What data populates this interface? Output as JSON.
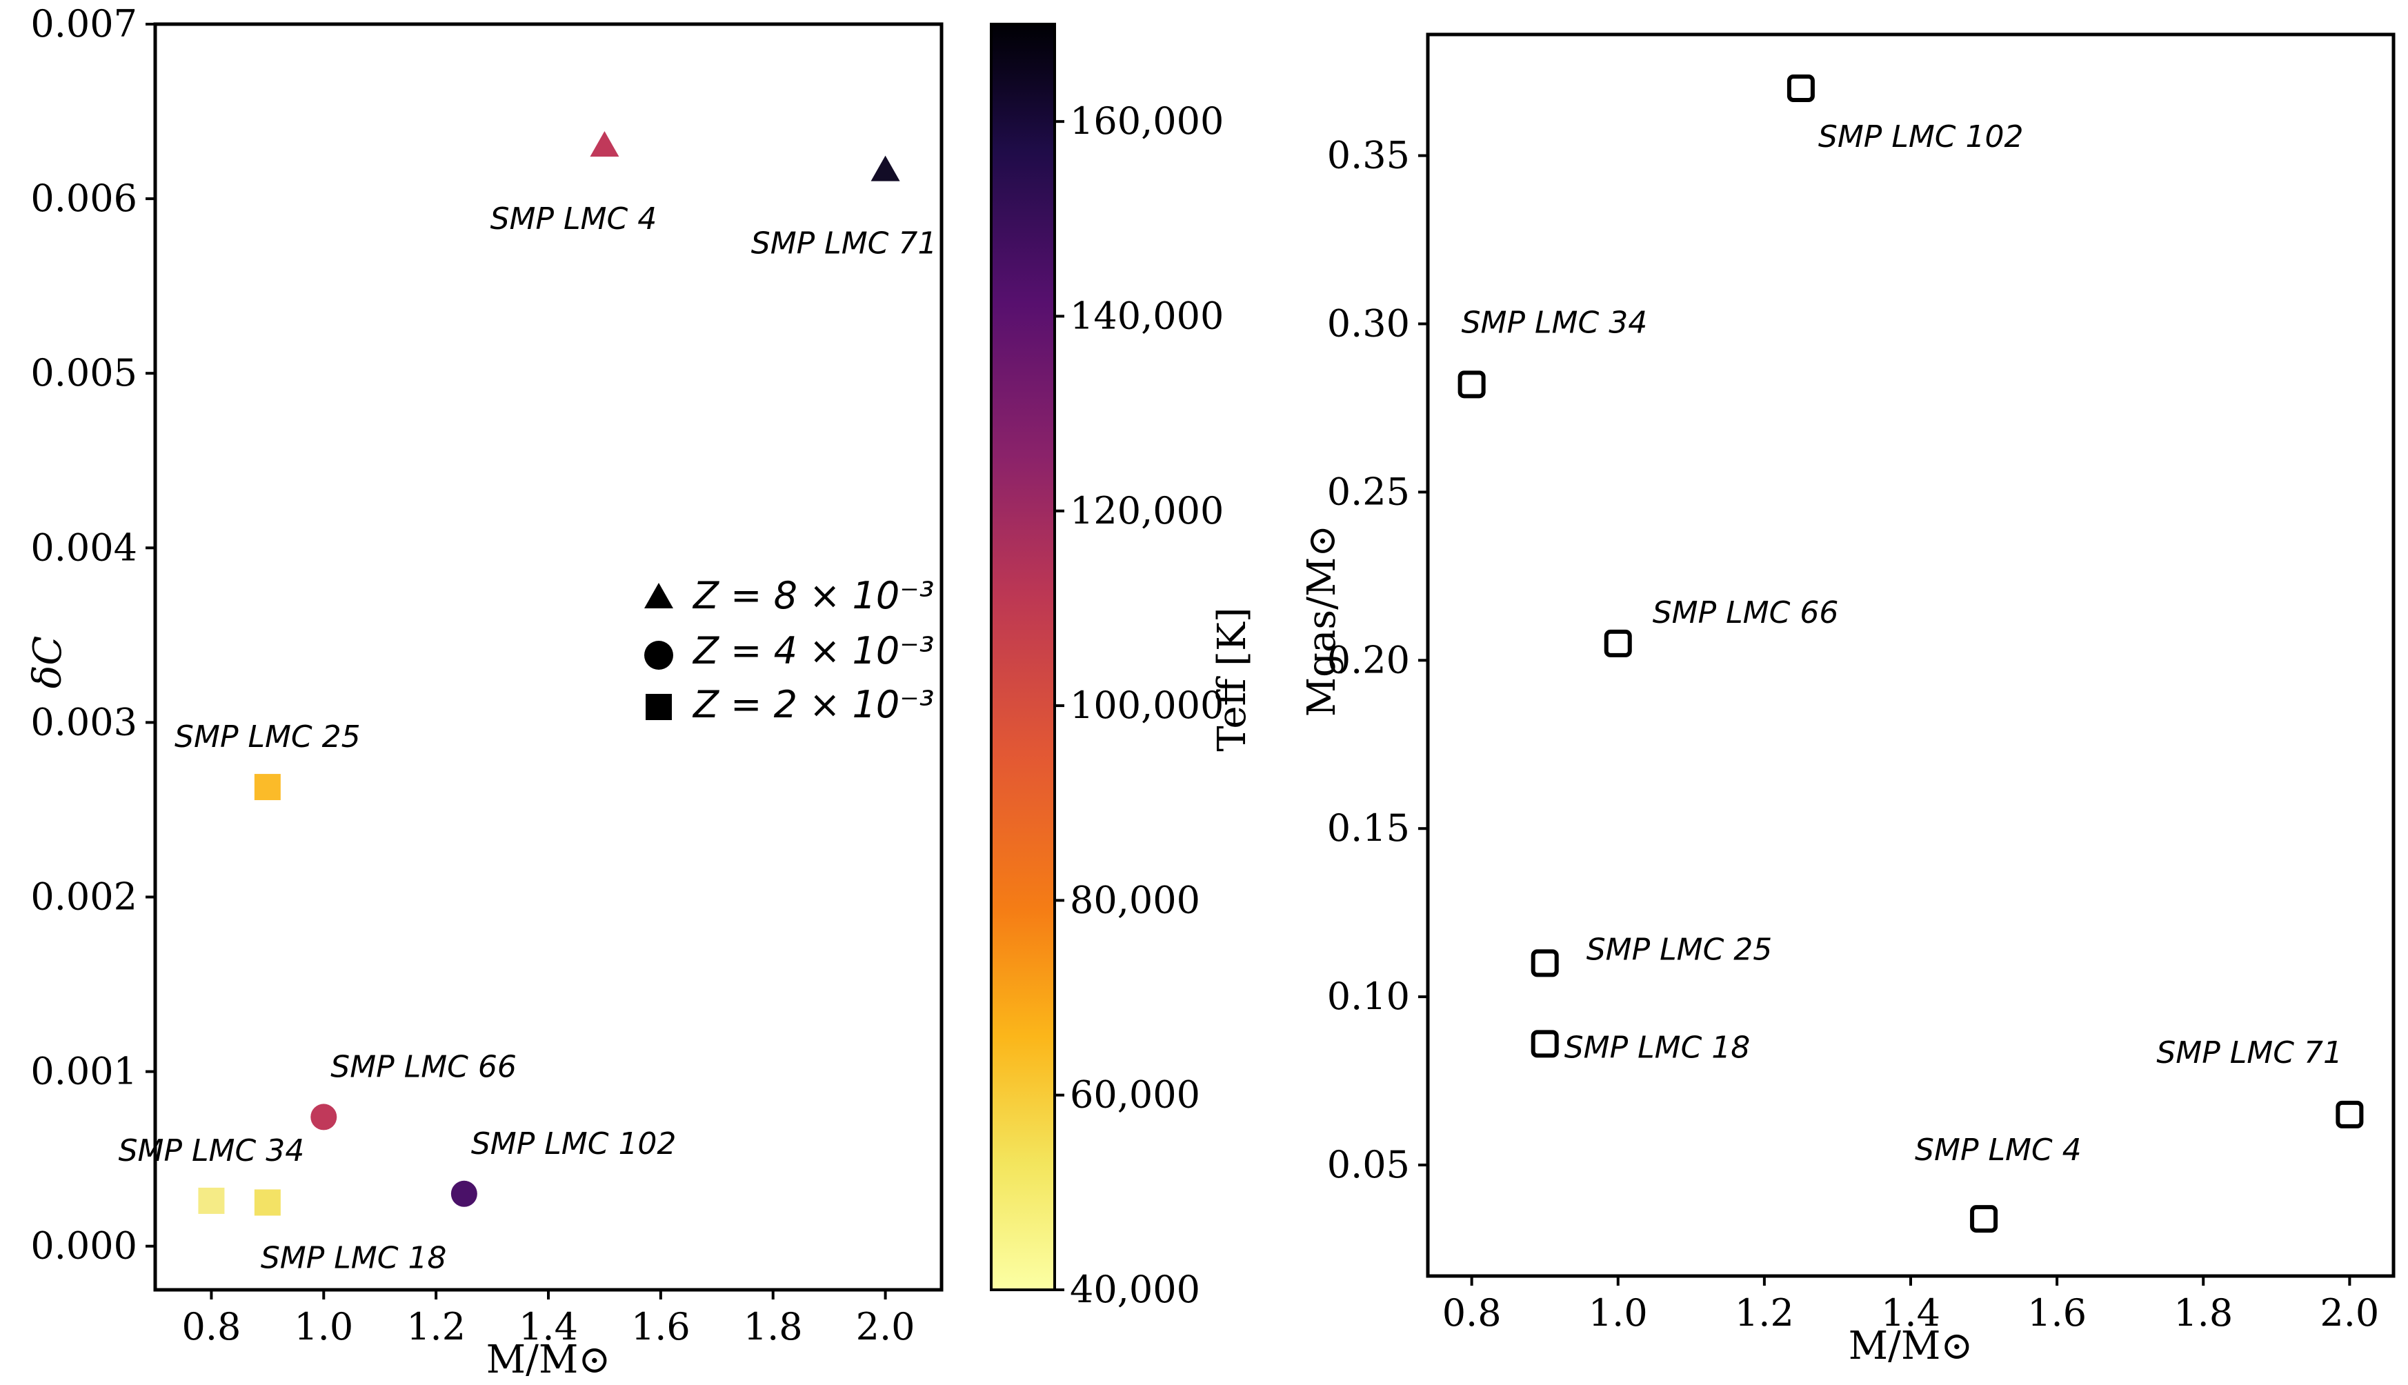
{
  "chart_data": [
    {
      "type": "scatter",
      "xlabel": "M/M⊙",
      "ylabel": "δC",
      "xlim": [
        0.7,
        2.1
      ],
      "ylim": [
        -0.00025,
        0.007
      ],
      "xticks": [
        0.8,
        1.0,
        1.2,
        1.4,
        1.6,
        1.8,
        2.0
      ],
      "xtick_labels": [
        "0.8",
        "1.0",
        "1.2",
        "1.4",
        "1.6",
        "1.8",
        "2.0"
      ],
      "yticks": [
        0.0,
        0.001,
        0.002,
        0.003,
        0.004,
        0.005,
        0.006,
        0.007
      ],
      "ytick_labels": [
        "0.000",
        "0.001",
        "0.002",
        "0.003",
        "0.004",
        "0.005",
        "0.006",
        "0.007"
      ],
      "colorbar": {
        "label": "Teff [K]",
        "cmap": "inferno_r",
        "range": [
          40000,
          170000
        ],
        "ticks": [
          40000,
          60000,
          80000,
          100000,
          120000,
          140000,
          160000
        ],
        "tick_labels": [
          "40,000",
          "60,000",
          "80,000",
          "100,000",
          "120,000",
          "140,000",
          "160,000"
        ]
      },
      "legend": {
        "placement": "center-right",
        "entries": [
          {
            "marker": "triangle",
            "label": "Z = 8 × 10⁻³"
          },
          {
            "marker": "circle",
            "label": "Z = 4 × 10⁻³"
          },
          {
            "marker": "square",
            "label": "Z = 2 × 10⁻³"
          }
        ]
      },
      "points": [
        {
          "name": "SMP LMC 4",
          "x": 1.5,
          "y": 0.0063,
          "marker": "triangle",
          "teff": 112000,
          "color": "#c0395a",
          "label_pos": "below-left"
        },
        {
          "name": "SMP LMC 71",
          "x": 2.0,
          "y": 0.00616,
          "marker": "triangle",
          "teff": 170000,
          "color": "#120c26",
          "label_pos": "below-left"
        },
        {
          "name": "SMP LMC 25",
          "x": 0.9,
          "y": 0.00263,
          "marker": "square",
          "teff": 62000,
          "color": "#fbbb29",
          "label_pos": "above"
        },
        {
          "name": "SMP LMC 66",
          "x": 1.0,
          "y": 0.00074,
          "marker": "circle",
          "teff": 112000,
          "color": "#c0395a",
          "label_pos": "above-right"
        },
        {
          "name": "SMP LMC 102",
          "x": 1.25,
          "y": 0.0003,
          "marker": "circle",
          "teff": 140000,
          "color": "#4a1168",
          "label_pos": "above-right"
        },
        {
          "name": "SMP LMC 34",
          "x": 0.8,
          "y": 0.00026,
          "marker": "square",
          "teff": 44000,
          "color": "#f5eb86",
          "label_pos": "above"
        },
        {
          "name": "SMP LMC 18",
          "x": 0.9,
          "y": 0.00025,
          "marker": "square",
          "teff": 48000,
          "color": "#f3e265",
          "label_pos": "below-right"
        }
      ]
    },
    {
      "type": "scatter",
      "xlabel": "M/M⊙",
      "ylabel": "Mgas/M⊙",
      "xlim": [
        0.74,
        2.06
      ],
      "ylim": [
        0.017,
        0.386
      ],
      "xticks": [
        0.8,
        1.0,
        1.2,
        1.4,
        1.6,
        1.8,
        2.0
      ],
      "xtick_labels": [
        "0.8",
        "1.0",
        "1.2",
        "1.4",
        "1.6",
        "1.8",
        "2.0"
      ],
      "yticks": [
        0.05,
        0.1,
        0.15,
        0.2,
        0.25,
        0.3,
        0.35
      ],
      "ytick_labels": [
        "0.05",
        "0.10",
        "0.15",
        "0.20",
        "0.25",
        "0.30",
        "0.35"
      ],
      "points": [
        {
          "name": "SMP LMC 102",
          "x": 1.25,
          "y": 0.37,
          "label_pos": "below-right"
        },
        {
          "name": "SMP LMC 34",
          "x": 0.8,
          "y": 0.282,
          "label_pos": "above-right"
        },
        {
          "name": "SMP LMC 66",
          "x": 1.0,
          "y": 0.205,
          "label_pos": "above-right"
        },
        {
          "name": "SMP LMC 25",
          "x": 0.9,
          "y": 0.11,
          "label_pos": "above-right"
        },
        {
          "name": "SMP LMC 18",
          "x": 0.9,
          "y": 0.086,
          "label_pos": "right"
        },
        {
          "name": "SMP LMC 71",
          "x": 2.0,
          "y": 0.065,
          "label_pos": "above-left"
        },
        {
          "name": "SMP LMC 4",
          "x": 1.5,
          "y": 0.034,
          "label_pos": "above"
        }
      ]
    }
  ]
}
